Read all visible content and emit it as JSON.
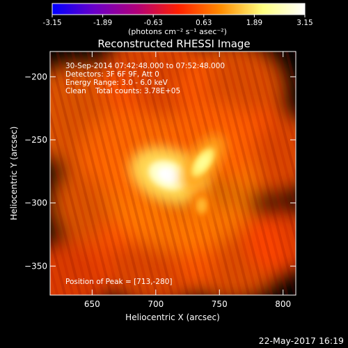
{
  "colorbar": {
    "min": -3.15,
    "max": 3.15,
    "ticks": [
      "-3.15",
      "-1.89",
      "-0.63",
      "0.63",
      "1.89",
      "3.15"
    ],
    "units_text": "(photons cm⁻² s⁻¹ asec⁻²)",
    "colors": [
      "#0000ff",
      "#6a00c8",
      "#b0007a",
      "#ff2000",
      "#ff8c00",
      "#ffff80",
      "#ffffff"
    ]
  },
  "chart_data": {
    "type": "heatmap",
    "title": "Reconstructed RHESSI Image",
    "xlabel": "Heliocentric X (arcsec)",
    "ylabel": "Heliocentric Y (arcsec)",
    "xlim": [
      617,
      810
    ],
    "ylim": [
      -373,
      -180
    ],
    "xticks": [
      650,
      700,
      750,
      800
    ],
    "yticks": [
      -200,
      -250,
      -300,
      -350
    ],
    "info_lines": [
      "30-Sep-2014 07:42:48.000 to 07:52:48.000",
      "Detectors: 3F 6F 9F, Att 0",
      "Energy Range: 3.0 - 6.0 keV",
      "Clean    Total counts: 3.78E+05"
    ],
    "peak_text": "Position of Peak = [713,-280]",
    "peak": [
      713,
      -280
    ],
    "sources": [
      {
        "x": 710,
        "y": -278,
        "intensity": 3.15
      },
      {
        "x": 737,
        "y": -268,
        "intensity": 2.3
      },
      {
        "x": 736,
        "y": -302,
        "intensity": 1.5
      }
    ],
    "background_level": 0.7
  },
  "footer": {
    "date": "22-May-2017 16:19"
  }
}
